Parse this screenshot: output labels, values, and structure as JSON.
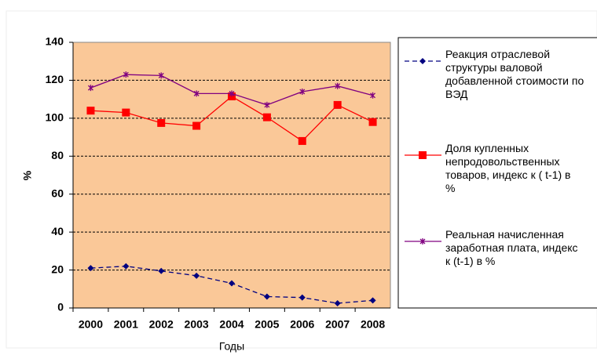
{
  "chart_data": {
    "type": "line",
    "x_label": "Годы",
    "y_label": "%",
    "categories": [
      "2000",
      "2001",
      "2002",
      "2003",
      "2004",
      "2005",
      "2006",
      "2007",
      "2008"
    ],
    "ylim": [
      0,
      140
    ],
    "yticks": [
      0,
      20,
      40,
      60,
      80,
      100,
      120,
      140
    ],
    "grid": true,
    "legend": "right",
    "series": [
      {
        "name": "Реакция отраслевой\nструктуры валовой\nдобавленной стоимости по\nВЭД",
        "color": "#000080",
        "marker": "diamond",
        "dash": true,
        "values": [
          21,
          22,
          19.5,
          17,
          13,
          6,
          5.5,
          2.5,
          4
        ]
      },
      {
        "name": "Доля купленных\nнепродовольственных\nтоваров,   индекс к ( t-1) в\n%",
        "color": "#ff0000",
        "marker": "square",
        "dash": false,
        "values": [
          104,
          103,
          97.5,
          96,
          111.5,
          100.5,
          88,
          107,
          98
        ]
      },
      {
        "name": "Реальная начисленная\nзаработная плата, индекс\nк (t-1) в %",
        "color": "#800080",
        "marker": "star",
        "dash": false,
        "values": [
          116,
          123,
          122.5,
          113,
          113,
          107,
          114,
          117,
          112
        ]
      }
    ]
  }
}
